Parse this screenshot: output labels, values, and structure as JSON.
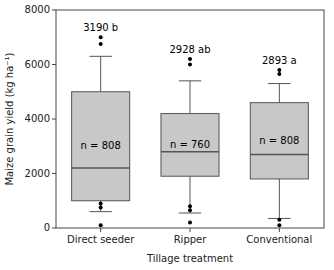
{
  "chart_data": {
    "type": "box",
    "xlabel": "Tillage treatment",
    "ylabel": "Maize grain yield (kg ha⁻¹)",
    "categories": [
      "Direct seeder",
      "Ripper",
      "Conventional"
    ],
    "boxes": [
      {
        "q1": 1000,
        "median": 2200,
        "q3": 5000,
        "whisker_low": 600,
        "whisker_high": 6300,
        "fliers_low": [
          900,
          750,
          100
        ],
        "fliers_high": [
          6750,
          7000
        ]
      },
      {
        "q1": 1900,
        "median": 2800,
        "q3": 4200,
        "whisker_low": 550,
        "whisker_high": 5400,
        "fliers_low": [
          800,
          650,
          200
        ],
        "fliers_high": [
          6000,
          6200
        ]
      },
      {
        "q1": 1800,
        "median": 2700,
        "q3": 4600,
        "whisker_low": 350,
        "whisker_high": 5300,
        "fliers_low": [
          300,
          100
        ],
        "fliers_high": [
          5650,
          5800
        ]
      }
    ],
    "n_labels": [
      "n = 808",
      "n = 760",
      "n = 808"
    ],
    "mean_labels": [
      "3190 b",
      "2928 ab",
      "2893 a"
    ],
    "color": "#c8c8c8",
    "ylim": [
      0,
      8000
    ],
    "yticks": [
      0,
      2000,
      4000,
      6000,
      8000
    ],
    "grid": false
  }
}
